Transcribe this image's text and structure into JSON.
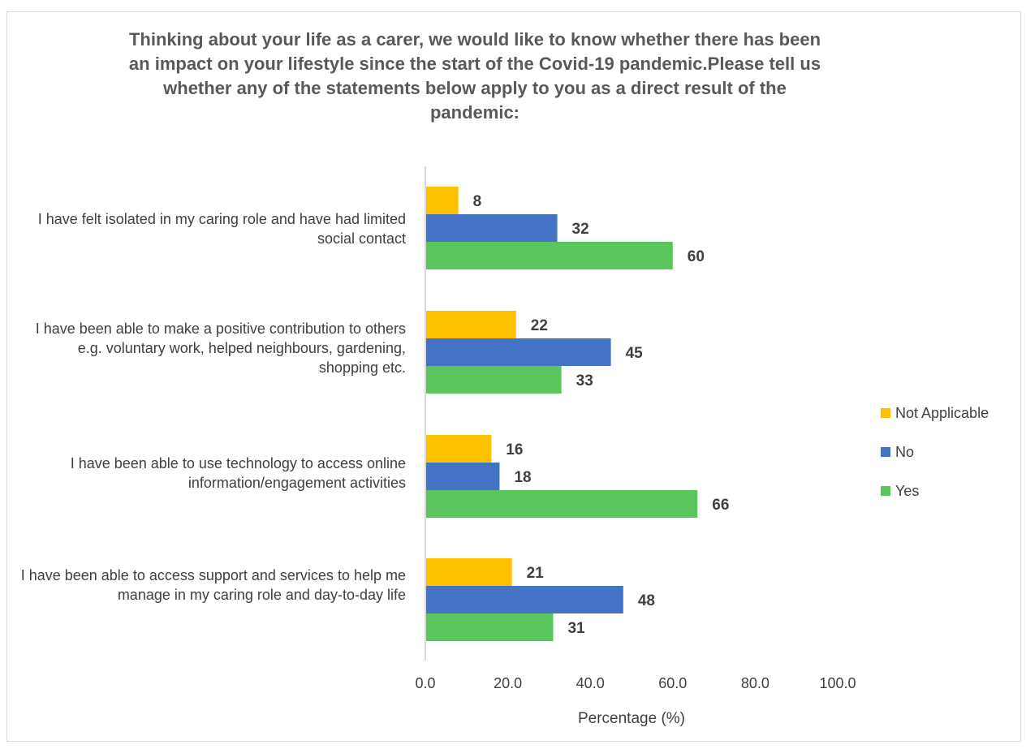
{
  "chart_data": {
    "type": "bar",
    "orientation": "horizontal",
    "title": "Thinking about your life as a carer, we would like to know whether there has been an impact on your lifestyle since the start of the Covid-19 pandemic.Please tell us whether any of the statements below apply to you as a direct result of the pandemic:",
    "xlabel": "Percentage (%)",
    "ylabel": "",
    "xlim": [
      0,
      100
    ],
    "x_ticks": [
      "0.0",
      "20.0",
      "40.0",
      "60.0",
      "80.0",
      "100.0"
    ],
    "grid": false,
    "legend_position": "right",
    "categories": [
      "I have felt isolated in my caring role and have had limited social contact",
      "I have been able to make a positive contribution to others e.g. voluntary work, helped neighbours, gardening, shopping etc.",
      "I have been able to use technology to access online information/engagement activities",
      "I have been able to access support and services to help me manage in my caring role and day-to-day life"
    ],
    "series": [
      {
        "name": "Not Applicable",
        "color": "#ffc000",
        "values": [
          8,
          22,
          16,
          21
        ]
      },
      {
        "name": "No",
        "color": "#4472c4",
        "values": [
          32,
          45,
          18,
          48
        ]
      },
      {
        "name": "Yes",
        "color": "#5bc55d",
        "values": [
          60,
          33,
          66,
          31
        ]
      }
    ]
  }
}
